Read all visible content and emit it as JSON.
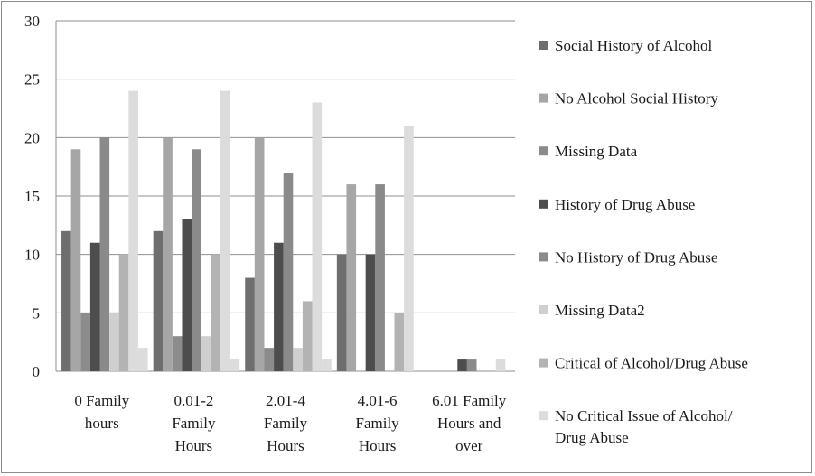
{
  "chart_data": {
    "type": "bar",
    "categories": [
      [
        "0 Family",
        "hours"
      ],
      [
        "0.01-2",
        "Family",
        "Hours"
      ],
      [
        "2.01-4",
        "Family",
        "Hours"
      ],
      [
        "4.01-6",
        "Family",
        "Hours"
      ],
      [
        "6.01 Family",
        "Hours and",
        "over"
      ]
    ],
    "ylim": [
      0,
      30
    ],
    "yticks": [
      0,
      5,
      10,
      15,
      20,
      25,
      30
    ],
    "grid": true,
    "legend_position": "right",
    "series": [
      {
        "name": "Social History of Alcohol",
        "color": "#6e6e6e",
        "values": [
          12,
          12,
          8,
          10,
          0
        ]
      },
      {
        "name": "No Alcohol Social History",
        "color": "#a6a6a6",
        "values": [
          19,
          20,
          20,
          16,
          0
        ]
      },
      {
        "name": "Missing Data",
        "color": "#8c8c8c",
        "values": [
          5,
          3,
          2,
          0,
          0
        ]
      },
      {
        "name": "History of Drug Abuse",
        "color": "#4d4d4d",
        "values": [
          11,
          13,
          11,
          10,
          1
        ]
      },
      {
        "name": "No History of Drug Abuse",
        "color": "#8a8a8a",
        "values": [
          20,
          19,
          17,
          16,
          1
        ]
      },
      {
        "name": "Missing Data2",
        "color": "#cfcfcf",
        "values": [
          5,
          3,
          2,
          0,
          0
        ]
      },
      {
        "name": "Critical of Alcohol/Drug Abuse",
        "color": "#b3b3b3",
        "values": [
          10,
          10,
          6,
          5,
          0
        ]
      },
      {
        "name": "No Critical Issue of Alcohol/ Drug Abuse",
        "color": "#dcdcdc",
        "values": [
          24,
          24,
          23,
          21,
          1
        ]
      },
      {
        "name": "",
        "color": "#dcdcdc",
        "values": [
          2,
          1,
          1,
          0,
          0
        ]
      }
    ]
  }
}
